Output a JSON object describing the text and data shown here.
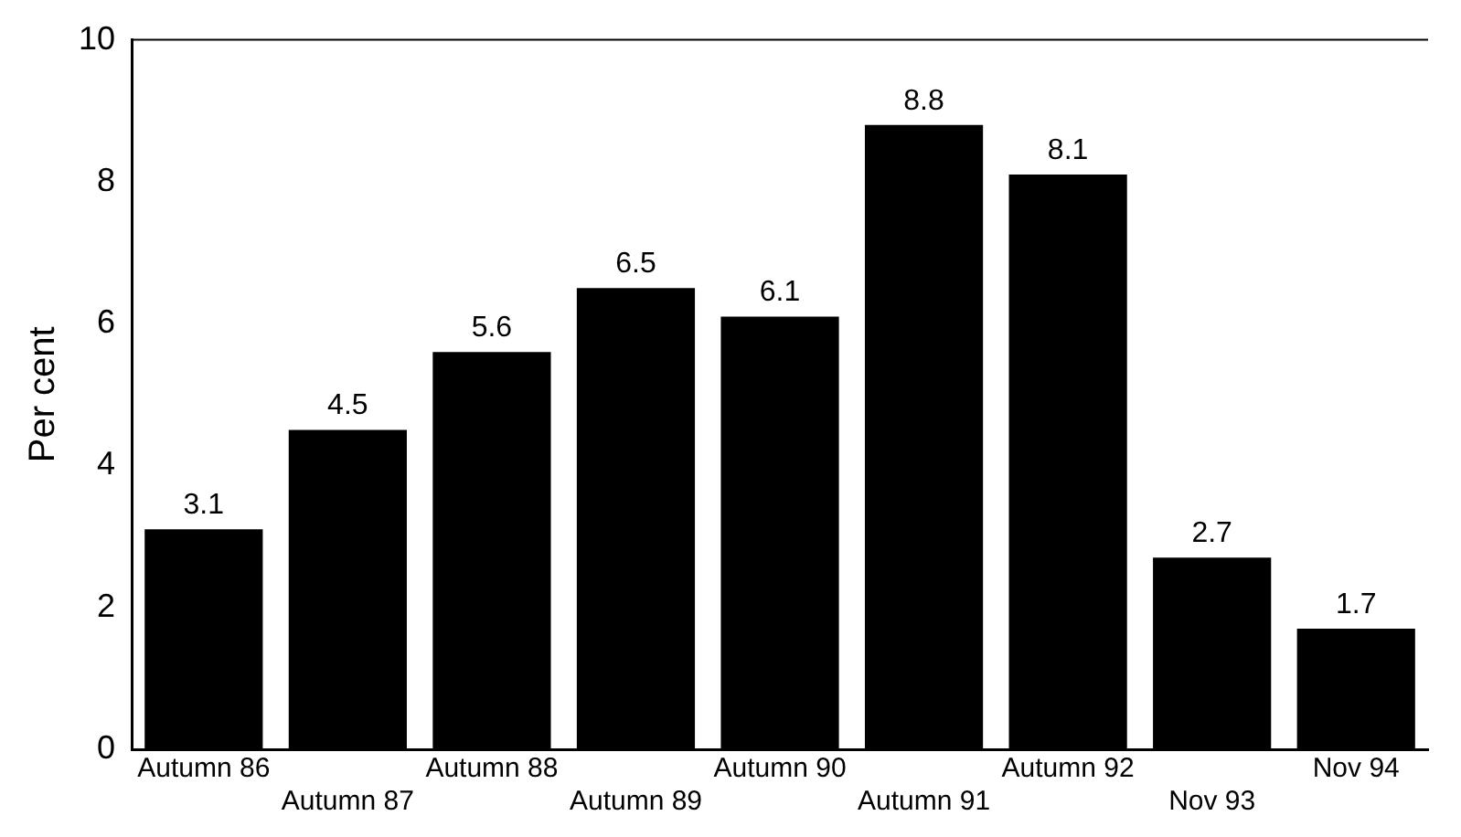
{
  "chart_data": {
    "type": "bar",
    "ylabel": "Per cent",
    "categories": [
      "Autumn 86",
      "Autumn 87",
      "Autumn 88",
      "Autumn 89",
      "Autumn 90",
      "Autumn 91",
      "Autumn 92",
      "Nov 93",
      "Nov 94"
    ],
    "values": [
      3.1,
      4.5,
      5.6,
      6.5,
      6.1,
      8.8,
      8.1,
      2.7,
      1.7
    ],
    "color": "#000000",
    "ylim": [
      0,
      10
    ],
    "yticks": [
      0,
      2,
      4,
      6,
      8,
      10
    ],
    "grid": false,
    "legend": false,
    "data_labels": true
  }
}
